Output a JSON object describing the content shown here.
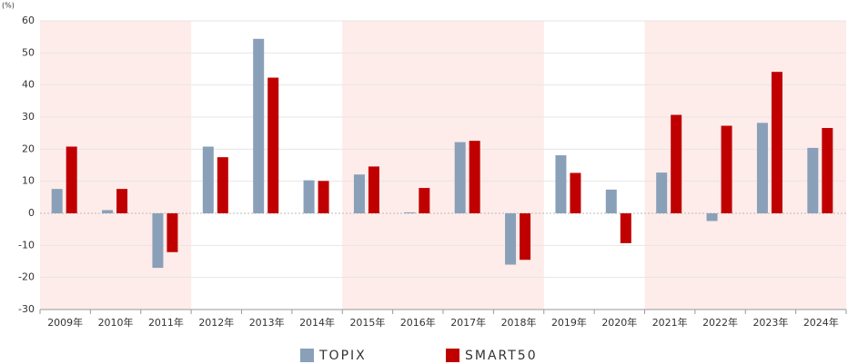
{
  "chart_data": {
    "type": "bar",
    "y_unit": "(%)",
    "categories": [
      "2009年",
      "2010年",
      "2011年",
      "2012年",
      "2013年",
      "2014年",
      "2015年",
      "2016年",
      "2017年",
      "2018年",
      "2019年",
      "2020年",
      "2021年",
      "2022年",
      "2023年",
      "2024年"
    ],
    "series": [
      {
        "name": "TOPIX",
        "color": "#8aa0b8",
        "values": [
          7.6,
          1.0,
          -17.0,
          20.8,
          54.4,
          10.3,
          12.1,
          0.3,
          22.2,
          -16.0,
          18.1,
          7.4,
          12.7,
          -2.4,
          28.2,
          20.4
        ]
      },
      {
        "name": "SMART50",
        "color": "#c00000",
        "values": [
          20.8,
          7.6,
          -12.1,
          17.5,
          42.3,
          10.1,
          14.6,
          7.9,
          22.6,
          -14.5,
          12.6,
          -9.3,
          30.7,
          27.3,
          44.1,
          26.6
        ]
      }
    ],
    "shaded_ranges": [
      [
        0,
        2
      ],
      [
        6,
        9
      ],
      [
        12,
        15
      ]
    ],
    "shade_color": "#fdecea",
    "ylim": [
      -30,
      60
    ],
    "yticks": [
      -30,
      -20,
      -10,
      0,
      10,
      20,
      30,
      40,
      50,
      60
    ],
    "grid": true
  }
}
